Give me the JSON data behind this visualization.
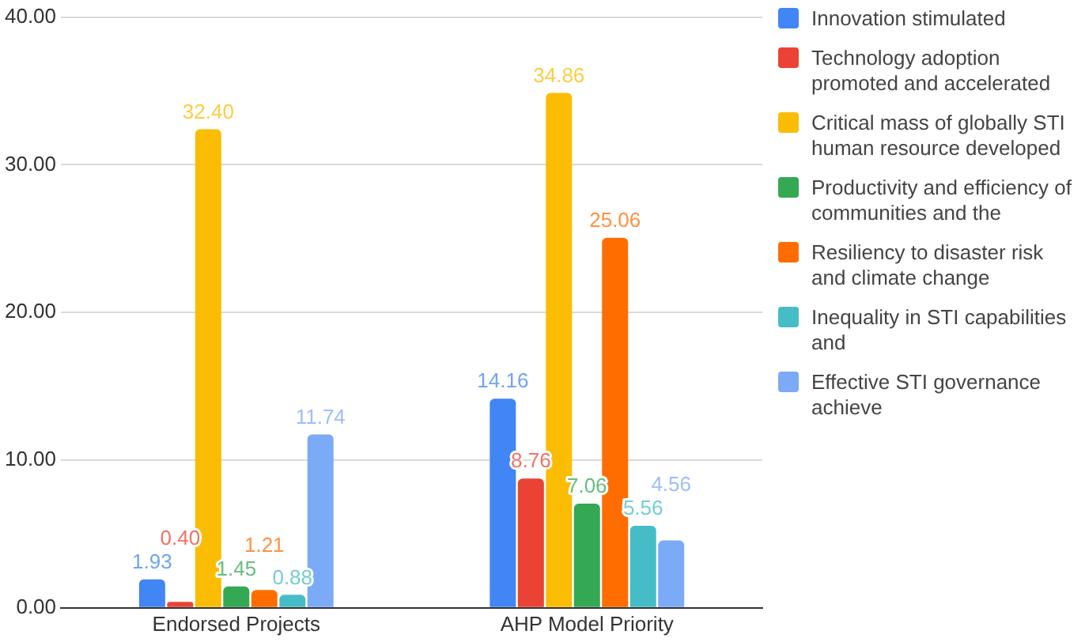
{
  "chart_data": {
    "type": "bar",
    "categories": [
      "Endorsed Projects",
      "AHP Model Priority"
    ],
    "series": [
      {
        "name": "Innovation stimulated",
        "color": "#4285f4",
        "values": [
          1.93,
          14.16
        ],
        "value_labels": [
          "1.93",
          "14.16"
        ]
      },
      {
        "name": "Technology adoption promoted and accelerated",
        "color": "#ea4335",
        "values": [
          0.4,
          8.76
        ],
        "value_labels": [
          "0.40",
          "8.76"
        ]
      },
      {
        "name": "Critical mass of globally STI human resource developed",
        "color": "#fbbc04",
        "values": [
          32.4,
          34.86
        ],
        "value_labels": [
          "32.40",
          "34.86"
        ]
      },
      {
        "name": "Productivity and efficiency of communities and the",
        "color": "#34a853",
        "values": [
          1.45,
          7.06
        ],
        "value_labels": [
          "1.45",
          "7.06"
        ]
      },
      {
        "name": "Resiliency to disaster risk and climate change",
        "color": "#ff6d01",
        "values": [
          1.21,
          25.06
        ],
        "value_labels": [
          "1.21",
          "25.06"
        ]
      },
      {
        "name": "Inequality in STI capabilities and",
        "color": "#46bdc6",
        "values": [
          0.88,
          5.56
        ],
        "value_labels": [
          "0.88",
          "5.56"
        ]
      },
      {
        "name": "Effective STI governance achieve",
        "color": "#7baaf7",
        "values": [
          11.74,
          4.56
        ],
        "value_labels": [
          "11.74",
          "4.56"
        ]
      }
    ],
    "ylim": [
      0,
      40
    ],
    "yticks": [
      {
        "value": 0,
        "label": "0.00"
      },
      {
        "value": 10,
        "label": "10.00"
      },
      {
        "value": 20,
        "label": "20.00"
      },
      {
        "value": 30,
        "label": "30.00"
      },
      {
        "value": 40,
        "label": "40.00"
      }
    ],
    "grid": "y",
    "legend": "right"
  }
}
